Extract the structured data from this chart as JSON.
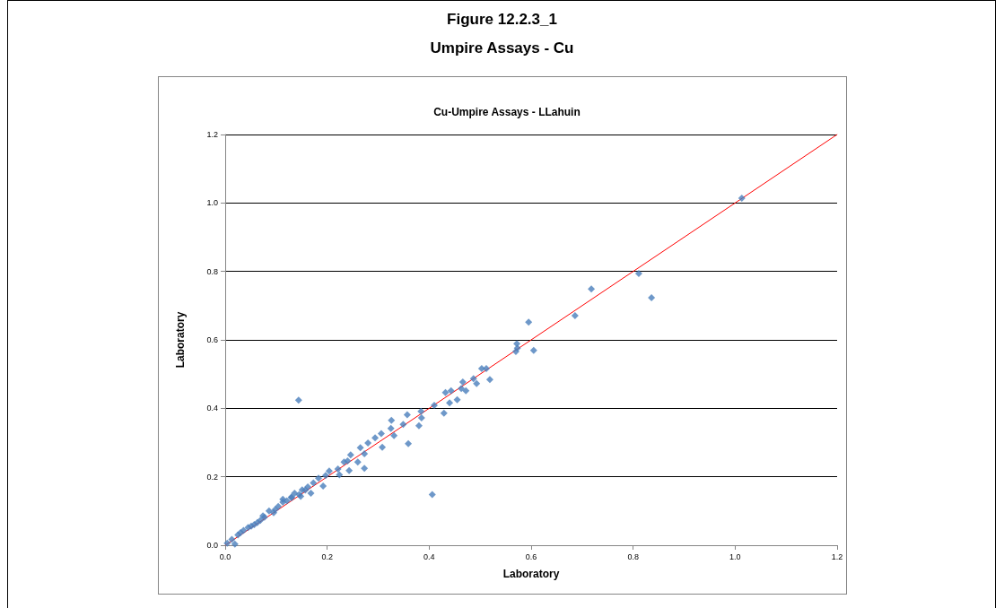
{
  "chart_data": {
    "type": "scatter",
    "title": "Figure 12.2.3_1",
    "subtitle": "Umpire Assays - Cu",
    "annotations": [
      "Cu-Umpire Assays - LLahuin"
    ],
    "xlabel": "Laboratory",
    "ylabel": "Laboratory",
    "xlim": [
      0,
      1.2
    ],
    "ylim": [
      0,
      1.2
    ],
    "xticks": [
      {
        "value": 0,
        "label": "0.0"
      },
      {
        "value": 0.2,
        "label": "0.2"
      },
      {
        "value": 0.4,
        "label": "0.4"
      },
      {
        "value": 0.6,
        "label": "0.6"
      },
      {
        "value": 0.8,
        "label": "0.8"
      },
      {
        "value": 1.0,
        "label": "1.0"
      },
      {
        "value": 1.2,
        "label": "1.2"
      }
    ],
    "yticks": [
      {
        "value": 0,
        "label": "0.0"
      },
      {
        "value": 0.2,
        "label": "0.2"
      },
      {
        "value": 0.4,
        "label": "0.4"
      },
      {
        "value": 0.6,
        "label": "0.6"
      },
      {
        "value": 0.8,
        "label": "0.8"
      },
      {
        "value": 1.0,
        "label": "1.0"
      },
      {
        "value": 1.2,
        "label": "1.2"
      }
    ],
    "grid": "y",
    "series": [
      {
        "type": "scatter",
        "marker": "diamond",
        "color": "#4a7ebb",
        "x": [
          1.013,
          0.811,
          0.836,
          0.718,
          0.686,
          0.595,
          0.605,
          0.572,
          0.573,
          0.57,
          0.503,
          0.512,
          0.519,
          0.487,
          0.493,
          0.466,
          0.472,
          0.463,
          0.455,
          0.44,
          0.443,
          0.432,
          0.429,
          0.41,
          0.384,
          0.38,
          0.385,
          0.357,
          0.359,
          0.349,
          0.326,
          0.325,
          0.331,
          0.308,
          0.306,
          0.294,
          0.28,
          0.265,
          0.273,
          0.273,
          0.26,
          0.246,
          0.24,
          0.233,
          0.243,
          0.221,
          0.224,
          0.204,
          0.192,
          0.197,
          0.183,
          0.173,
          0.162,
          0.168,
          0.151,
          0.144,
          0.406,
          0.145,
          0.13,
          0.113,
          0.004,
          0.019,
          0.013,
          0.025,
          0.036,
          0.045,
          0.057,
          0.069,
          0.077,
          0.086,
          0.095,
          0.104,
          0.113,
          0.098,
          0.121,
          0.13,
          0.136,
          0.148,
          0.157,
          0.051,
          0.03,
          0.063,
          0.074
        ],
        "values": [
          1.014,
          0.794,
          0.723,
          0.749,
          0.671,
          0.652,
          0.569,
          0.589,
          0.576,
          0.566,
          0.516,
          0.516,
          0.484,
          0.487,
          0.472,
          0.477,
          0.451,
          0.458,
          0.425,
          0.416,
          0.451,
          0.446,
          0.386,
          0.409,
          0.391,
          0.349,
          0.372,
          0.381,
          0.297,
          0.353,
          0.365,
          0.341,
          0.32,
          0.286,
          0.326,
          0.314,
          0.299,
          0.285,
          0.267,
          0.225,
          0.243,
          0.264,
          0.246,
          0.243,
          0.218,
          0.223,
          0.206,
          0.217,
          0.173,
          0.204,
          0.196,
          0.182,
          0.17,
          0.152,
          0.162,
          0.424,
          0.148,
          0.148,
          0.141,
          0.134,
          0.006,
          0.003,
          0.017,
          0.03,
          0.043,
          0.052,
          0.06,
          0.073,
          0.082,
          0.1,
          0.095,
          0.113,
          0.126,
          0.104,
          0.13,
          0.139,
          0.152,
          0.143,
          0.161,
          0.056,
          0.037,
          0.066,
          0.086
        ]
      },
      {
        "type": "line",
        "color": "#ff0000",
        "x": [
          0,
          1.2
        ],
        "values": [
          0,
          1.2
        ]
      }
    ]
  }
}
